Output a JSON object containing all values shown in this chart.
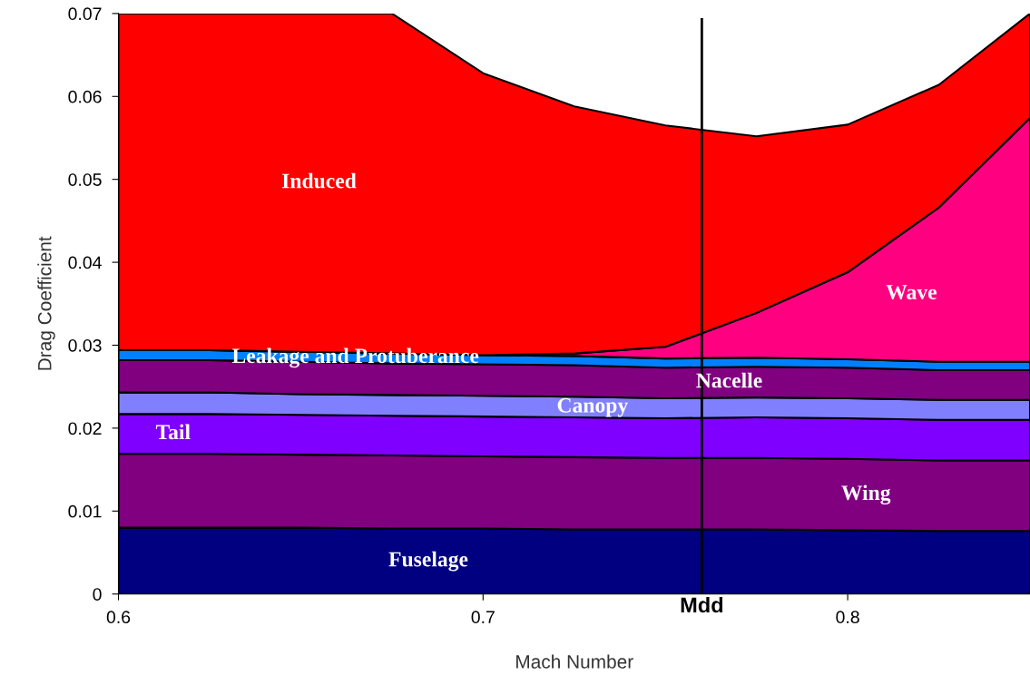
{
  "chart_data": {
    "type": "area",
    "stacked": true,
    "xlabel": "Mach Number",
    "ylabel": "Drag Coefficient",
    "x": [
      0.6,
      0.625,
      0.65,
      0.675,
      0.7,
      0.725,
      0.75,
      0.775,
      0.8,
      0.825,
      0.85
    ],
    "series": [
      {
        "name": "Fuselage",
        "color": "#000080",
        "values": [
          0.008,
          0.008,
          0.008,
          0.0079,
          0.0079,
          0.0078,
          0.0078,
          0.0078,
          0.0077,
          0.0076,
          0.0076
        ]
      },
      {
        "name": "Wing",
        "color": "#800080",
        "values": [
          0.0089,
          0.0089,
          0.0088,
          0.0088,
          0.0087,
          0.0087,
          0.0086,
          0.0086,
          0.0086,
          0.0085,
          0.0085
        ]
      },
      {
        "name": "Tail",
        "color": "#8000ff",
        "values": [
          0.0048,
          0.0048,
          0.0048,
          0.0048,
          0.0048,
          0.0048,
          0.0048,
          0.0049,
          0.0049,
          0.0049,
          0.0049
        ]
      },
      {
        "name": "Canopy",
        "color": "#8080ff",
        "values": [
          0.0026,
          0.0026,
          0.0025,
          0.0025,
          0.0025,
          0.0025,
          0.0024,
          0.0024,
          0.0024,
          0.0024,
          0.0024
        ]
      },
      {
        "name": "Nacelle",
        "color": "#800080",
        "values": [
          0.0039,
          0.0039,
          0.0039,
          0.0038,
          0.0038,
          0.0038,
          0.0037,
          0.0037,
          0.0037,
          0.0036,
          0.0036
        ]
      },
      {
        "name": "Leakage and Protuberance",
        "color": "#0080ff",
        "values": [
          0.0012,
          0.0012,
          0.0012,
          0.0012,
          0.0011,
          0.0011,
          0.0011,
          0.0011,
          0.001,
          0.001,
          0.001
        ]
      },
      {
        "name": "Wave",
        "color": "#ff0080",
        "values": [
          0,
          0,
          0,
          0,
          0,
          0.0003,
          0.0014,
          0.0054,
          0.0105,
          0.0186,
          0.0294
        ]
      },
      {
        "name": "Induced",
        "color": "#ff0000",
        "values": [
          0.0406,
          0.0406,
          0.0408,
          0.041,
          0.034,
          0.0298,
          0.0267,
          0.0213,
          0.0178,
          0.0148,
          0.0126
        ]
      }
    ],
    "xlim": [
      0.6,
      0.85
    ],
    "xticks": [
      0.6,
      0.7,
      0.8
    ],
    "ylim": [
      0,
      0.07
    ],
    "yticks": [
      0,
      0.01,
      0.02,
      0.03,
      0.04,
      0.05,
      0.06,
      0.07
    ],
    "ref_lines": [
      {
        "axis": "x",
        "value": 0.76,
        "label": "Mdd",
        "color": "#000000"
      }
    ],
    "grid": false,
    "legend": false
  }
}
